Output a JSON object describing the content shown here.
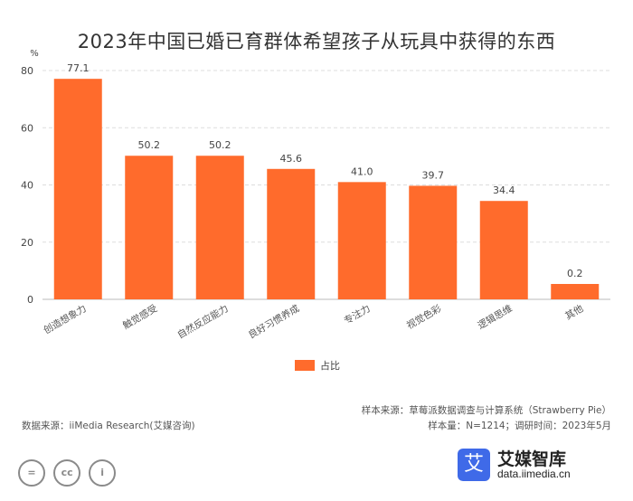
{
  "title": "2023年中国已婚已育群体希望孩子从玩具中获得的东西",
  "chart_data": {
    "type": "bar",
    "ylabel": "%",
    "ylim": [
      0,
      80
    ],
    "yticks": [
      0,
      20,
      40,
      60,
      80
    ],
    "grid": true,
    "legend_position": "bottom-center",
    "categories": [
      "创造想象力",
      "触觉感受",
      "自然反应能力",
      "良好习惯养成",
      "专注力",
      "视觉色彩",
      "逻辑思维",
      "其他"
    ],
    "series": [
      {
        "name": "占比",
        "color": "#ff6b2c",
        "values": [
          77.1,
          50.2,
          50.2,
          45.6,
          41.0,
          39.7,
          34.4,
          0.2
        ]
      }
    ],
    "data_labels": [
      "77.1",
      "50.2",
      "50.2",
      "45.6",
      "41.0",
      "39.7",
      "34.4",
      "0.2"
    ]
  },
  "footer": {
    "sample_source": "样本来源：草莓派数据调查与计算系统（Strawberry Pie）",
    "sample_info": "样本量：N=1214；调研时间：2023年5月",
    "data_source": "数据来源：iiMedia Research(艾媒咨询)"
  },
  "brand": {
    "logo_char": "艾",
    "name": "艾媒智库",
    "url": "data.iimedia.cn"
  },
  "license_icons": [
    "equal-icon",
    "cc-icon",
    "person-icon"
  ],
  "license_glyphs": [
    "=",
    "cc",
    "i"
  ]
}
